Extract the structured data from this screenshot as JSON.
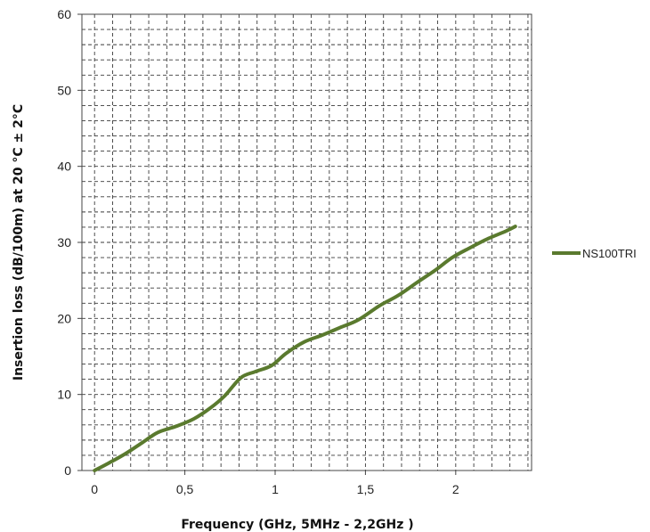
{
  "chart_data": {
    "type": "line",
    "xlabel": "Frequency (GHz, 5MHz - 2,2GHz )",
    "ylabel": "Insertion loss (dB/100m) at 20 °C ± 2°C",
    "xlim": [
      -0.07,
      2.42
    ],
    "ylim": [
      0,
      60
    ],
    "x_ticks": [
      0,
      0.5,
      1,
      1.5,
      2
    ],
    "x_tick_labels": [
      "0",
      "0,5",
      "1",
      "1,5",
      "2"
    ],
    "y_ticks": [
      0,
      10,
      20,
      30,
      40,
      50,
      60
    ],
    "y_tick_labels": [
      "0",
      "10",
      "20",
      "30",
      "40",
      "50",
      "60"
    ],
    "grid": true,
    "grid_style": "dashed",
    "legend": "right",
    "series": [
      {
        "name": "NS100TRI",
        "color": "#5a7a2e",
        "x": [
          0.0,
          0.08,
          0.17,
          0.26,
          0.35,
          0.45,
          0.55,
          0.64,
          0.72,
          0.81,
          0.89,
          0.98,
          1.06,
          1.16,
          1.26,
          1.36,
          1.46,
          1.58,
          1.68,
          1.79,
          1.89,
          1.98,
          2.08,
          2.18,
          2.28,
          2.33
        ],
        "values": [
          0.0,
          1.0,
          2.2,
          3.6,
          5.0,
          5.8,
          6.8,
          8.2,
          9.8,
          12.2,
          13.0,
          13.8,
          15.4,
          16.9,
          17.8,
          18.8,
          19.8,
          21.7,
          23.0,
          24.8,
          26.4,
          28.0,
          29.3,
          30.5,
          31.5,
          32.1
        ]
      }
    ]
  }
}
